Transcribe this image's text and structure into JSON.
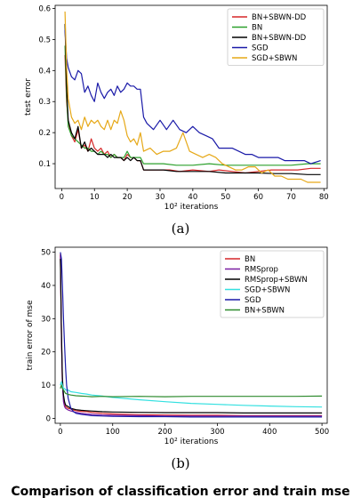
{
  "chart_data": [
    {
      "type": "line",
      "caption": "(a)",
      "xlabel": "10² iterations",
      "ylabel": "test error",
      "xlim": [
        -2,
        81
      ],
      "ylim": [
        0.02,
        0.61
      ],
      "xticks": [
        0,
        10,
        20,
        30,
        40,
        50,
        60,
        70,
        80
      ],
      "yticks": [
        0.1,
        0.2,
        0.3,
        0.4,
        0.5,
        0.6
      ],
      "legend_position": "top-right",
      "series": [
        {
          "name": "BN+SBWN-DD",
          "color": "#d62728",
          "x": [
            1,
            1.5,
            2,
            3,
            4,
            5,
            6,
            7,
            8,
            9,
            10,
            11,
            12,
            13,
            14,
            15,
            16,
            17,
            18,
            19,
            20,
            21,
            22,
            23,
            24,
            25,
            27,
            30,
            33,
            36,
            40,
            45,
            48,
            52,
            56,
            60,
            64,
            68,
            72,
            76,
            79
          ],
          "y": [
            0.45,
            0.3,
            0.24,
            0.19,
            0.17,
            0.21,
            0.15,
            0.16,
            0.14,
            0.18,
            0.15,
            0.14,
            0.15,
            0.13,
            0.14,
            0.12,
            0.13,
            0.12,
            0.12,
            0.11,
            0.13,
            0.12,
            0.12,
            0.11,
            0.11,
            0.08,
            0.08,
            0.08,
            0.08,
            0.075,
            0.08,
            0.075,
            0.08,
            0.075,
            0.07,
            0.075,
            0.08,
            0.08,
            0.08,
            0.085,
            0.085
          ]
        },
        {
          "name": "BN",
          "color": "#2ca02c",
          "x": [
            1,
            1.5,
            2,
            3,
            4,
            5,
            6,
            7,
            8,
            9,
            10,
            11,
            12,
            13,
            14,
            15,
            16,
            17,
            18,
            19,
            20,
            21,
            22,
            23,
            24,
            25,
            28,
            31,
            35,
            40,
            45,
            50,
            55,
            60,
            65,
            70,
            75,
            79
          ],
          "y": [
            0.48,
            0.32,
            0.22,
            0.19,
            0.18,
            0.17,
            0.16,
            0.15,
            0.15,
            0.14,
            0.14,
            0.13,
            0.14,
            0.13,
            0.13,
            0.12,
            0.13,
            0.12,
            0.12,
            0.12,
            0.14,
            0.12,
            0.12,
            0.12,
            0.12,
            0.1,
            0.1,
            0.1,
            0.095,
            0.095,
            0.1,
            0.095,
            0.095,
            0.095,
            0.095,
            0.095,
            0.1,
            0.1
          ]
        },
        {
          "name": "BN+SBWN-DD",
          "color": "#000000",
          "x": [
            1,
            1.5,
            2,
            3,
            4,
            5,
            6,
            7,
            8,
            9,
            10,
            11,
            12,
            13,
            14,
            15,
            16,
            17,
            18,
            19,
            20,
            21,
            22,
            23,
            24,
            25,
            28,
            31,
            35,
            40,
            45,
            50,
            55,
            60,
            65,
            70,
            75,
            79
          ],
          "y": [
            0.55,
            0.35,
            0.24,
            0.2,
            0.18,
            0.22,
            0.15,
            0.17,
            0.14,
            0.15,
            0.14,
            0.13,
            0.13,
            0.13,
            0.12,
            0.13,
            0.12,
            0.12,
            0.12,
            0.11,
            0.12,
            0.11,
            0.12,
            0.11,
            0.11,
            0.08,
            0.08,
            0.08,
            0.075,
            0.075,
            0.075,
            0.07,
            0.07,
            0.07,
            0.068,
            0.068,
            0.065,
            0.065
          ]
        },
        {
          "name": "SGD",
          "color": "#1a1aa8",
          "x": [
            1,
            1.5,
            2,
            3,
            4,
            5,
            6,
            7,
            8,
            9,
            10,
            11,
            12,
            13,
            14,
            15,
            16,
            17,
            18,
            19,
            20,
            21,
            22,
            23,
            24,
            25,
            26,
            28,
            30,
            32,
            34,
            36,
            38,
            40,
            42,
            44,
            46,
            48,
            50,
            52,
            54,
            56,
            58,
            60,
            62,
            64,
            66,
            68,
            70,
            72,
            74,
            76,
            79
          ],
          "y": [
            0.53,
            0.44,
            0.41,
            0.38,
            0.37,
            0.4,
            0.39,
            0.33,
            0.35,
            0.32,
            0.3,
            0.36,
            0.33,
            0.31,
            0.33,
            0.34,
            0.32,
            0.35,
            0.33,
            0.34,
            0.36,
            0.35,
            0.35,
            0.34,
            0.34,
            0.25,
            0.23,
            0.21,
            0.24,
            0.21,
            0.24,
            0.21,
            0.2,
            0.22,
            0.2,
            0.19,
            0.18,
            0.15,
            0.15,
            0.15,
            0.14,
            0.13,
            0.13,
            0.12,
            0.12,
            0.12,
            0.12,
            0.11,
            0.11,
            0.11,
            0.11,
            0.1,
            0.11
          ]
        },
        {
          "name": "SGD+SBWN",
          "color": "#e6a817",
          "x": [
            1,
            1.5,
            2,
            3,
            4,
            5,
            6,
            7,
            8,
            9,
            10,
            11,
            12,
            13,
            14,
            15,
            16,
            17,
            18,
            19,
            20,
            21,
            22,
            23,
            24,
            25,
            27,
            29,
            31,
            33,
            35,
            37,
            39,
            41,
            43,
            45,
            47,
            49,
            51,
            53,
            55,
            57,
            59,
            61,
            63,
            65,
            67,
            69,
            71,
            73,
            75,
            77,
            79
          ],
          "y": [
            0.59,
            0.41,
            0.31,
            0.25,
            0.23,
            0.24,
            0.21,
            0.25,
            0.22,
            0.24,
            0.23,
            0.24,
            0.22,
            0.21,
            0.24,
            0.21,
            0.24,
            0.23,
            0.27,
            0.24,
            0.19,
            0.17,
            0.18,
            0.16,
            0.2,
            0.14,
            0.15,
            0.13,
            0.14,
            0.14,
            0.15,
            0.2,
            0.14,
            0.13,
            0.12,
            0.13,
            0.12,
            0.1,
            0.09,
            0.08,
            0.08,
            0.09,
            0.09,
            0.07,
            0.08,
            0.06,
            0.06,
            0.05,
            0.05,
            0.05,
            0.04,
            0.04,
            0.04
          ]
        }
      ]
    },
    {
      "type": "line",
      "caption": "(b)",
      "xlabel": "10² iterations",
      "ylabel": "train error of mse",
      "xlim": [
        -10,
        510
      ],
      "ylim": [
        -1.5,
        51.5
      ],
      "xticks": [
        0,
        100,
        200,
        300,
        400,
        500
      ],
      "yticks": [
        0,
        10,
        20,
        30,
        40,
        50
      ],
      "legend_position": "top-right",
      "series": [
        {
          "name": "BN",
          "color": "#d62728",
          "x": [
            0,
            2,
            4,
            6,
            8,
            10,
            15,
            20,
            25,
            30,
            40,
            50,
            60,
            80,
            100,
            150,
            200,
            250,
            300,
            350,
            400,
            450,
            500
          ],
          "y": [
            49.5,
            25,
            10,
            6,
            4,
            3.5,
            3,
            2.8,
            2.5,
            2.3,
            2.1,
            2,
            1.8,
            1.5,
            1.3,
            1.1,
            1,
            0.9,
            0.9,
            0.8,
            0.8,
            0.8,
            0.8
          ]
        },
        {
          "name": "RMSprop",
          "color": "#7a1fa2",
          "x": [
            0,
            2,
            4,
            6,
            8,
            10,
            15,
            20,
            25,
            30,
            40,
            50,
            60,
            80,
            100,
            150,
            200,
            250,
            300,
            350,
            400,
            450,
            500
          ],
          "y": [
            49,
            25,
            10,
            5,
            3.5,
            3,
            2.5,
            2.2,
            2,
            1.8,
            1.5,
            1.3,
            1.2,
            1,
            0.9,
            0.8,
            0.7,
            0.7,
            0.7,
            0.7,
            0.7,
            0.7,
            0.7
          ]
        },
        {
          "name": "RMSprop+SBWN",
          "color": "#000000",
          "x": [
            0,
            2,
            4,
            6,
            8,
            10,
            15,
            20,
            25,
            30,
            40,
            50,
            60,
            80,
            100,
            150,
            200,
            250,
            300,
            350,
            400,
            450,
            500
          ],
          "y": [
            48,
            26,
            12,
            7,
            5,
            4,
            3.5,
            3,
            2.8,
            2.6,
            2.4,
            2.3,
            2.2,
            2,
            1.9,
            1.8,
            1.7,
            1.7,
            1.7,
            1.6,
            1.6,
            1.6,
            1.6
          ]
        },
        {
          "name": "SGD+SBWN",
          "color": "#33e0e0",
          "x": [
            0,
            2,
            4,
            6,
            8,
            10,
            15,
            20,
            30,
            40,
            50,
            60,
            80,
            100,
            150,
            200,
            250,
            300,
            350,
            400,
            450,
            500
          ],
          "y": [
            10,
            11,
            10,
            9,
            9,
            8.5,
            8.5,
            8,
            7.8,
            7.5,
            7.3,
            7,
            6.7,
            6.3,
            5.6,
            5,
            4.5,
            4.2,
            3.9,
            3.7,
            3.5,
            3.4
          ]
        },
        {
          "name": "SGD",
          "color": "#1a1aa8",
          "x": [
            0,
            2,
            4,
            6,
            8,
            10,
            12,
            15,
            20,
            25,
            30,
            40,
            50,
            60,
            80,
            100,
            150,
            200,
            250,
            300,
            350,
            400,
            450,
            500
          ],
          "y": [
            50,
            48,
            40,
            30,
            22,
            15,
            10,
            6,
            3,
            2,
            1.5,
            1.2,
            1,
            0.8,
            0.7,
            0.6,
            0.5,
            0.5,
            0.4,
            0.4,
            0.4,
            0.4,
            0.4,
            0.4
          ]
        },
        {
          "name": "BN+SBWN",
          "color": "#2e8b2e",
          "x": [
            0,
            2,
            4,
            6,
            8,
            10,
            15,
            20,
            30,
            40,
            50,
            60,
            80,
            100,
            150,
            200,
            250,
            300,
            350,
            400,
            450,
            500
          ],
          "y": [
            9,
            10,
            9,
            8.5,
            8,
            7.5,
            7.2,
            7,
            6.8,
            6.7,
            6.6,
            6.5,
            6.6,
            6.5,
            6.6,
            6.5,
            6.6,
            6.6,
            6.6,
            6.6,
            6.6,
            6.7
          ]
        }
      ]
    }
  ],
  "footer_text": "Comparison of classification error and train mse"
}
